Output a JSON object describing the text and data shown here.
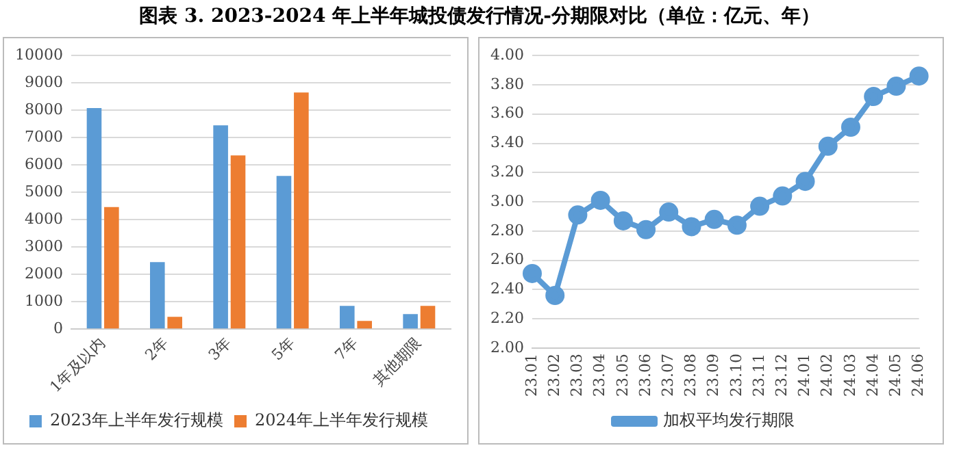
{
  "chart_data": [
    {
      "type": "bar",
      "title": "图表 3. 2023-2024 年上半年城投债发行情况-分期限对比（单位：亿元、年）",
      "categories": [
        "1年及以内",
        "2年",
        "3年",
        "5年",
        "7年",
        "其他期限"
      ],
      "series": [
        {
          "name": "2023年上半年发行规模",
          "color": "#5b9bd5",
          "values": [
            8080,
            2450,
            7450,
            5600,
            850,
            550
          ]
        },
        {
          "name": "2024年上半年发行规模",
          "color": "#ed7d31",
          "values": [
            4460,
            450,
            6350,
            8650,
            300,
            850
          ]
        }
      ],
      "ylim": [
        0,
        10000
      ],
      "yticks": [
        0,
        1000,
        2000,
        3000,
        4000,
        5000,
        6000,
        7000,
        8000,
        9000,
        10000
      ],
      "grid": "y",
      "legend": "bottom"
    },
    {
      "type": "line",
      "categories": [
        "23.01",
        "23.02",
        "23.03",
        "23.04",
        "23.05",
        "23.06",
        "23.07",
        "23.08",
        "23.09",
        "23.10",
        "23.11",
        "23.12",
        "24.01",
        "24.02",
        "24.03",
        "24.04",
        "24.05",
        "24.06"
      ],
      "series": [
        {
          "name": "加权平均发行期限",
          "color": "#5b9bd5",
          "values": [
            2.51,
            2.36,
            2.91,
            3.01,
            2.87,
            2.81,
            2.93,
            2.83,
            2.88,
            2.84,
            2.97,
            3.04,
            3.14,
            3.38,
            3.51,
            3.72,
            3.79,
            3.86
          ]
        }
      ],
      "ylim": [
        2,
        4
      ],
      "yticks": [
        {
          "value": 2,
          "label": "2.00"
        },
        {
          "value": 2.2,
          "label": "2.20"
        },
        {
          "value": 2.4,
          "label": "2.40"
        },
        {
          "value": 2.6,
          "label": "2.60"
        },
        {
          "value": 2.8,
          "label": "2.80"
        },
        {
          "value": 3,
          "label": "3.00"
        },
        {
          "value": 3.2,
          "label": "3.20"
        },
        {
          "value": 3.4,
          "label": "3.40"
        },
        {
          "value": 3.6,
          "label": "3.60"
        },
        {
          "value": 3.8,
          "label": "3.80"
        },
        {
          "value": 4,
          "label": "4.00"
        }
      ],
      "grid": "y",
      "legend": "bottom",
      "marker": "circle",
      "line_style": "solid"
    }
  ]
}
